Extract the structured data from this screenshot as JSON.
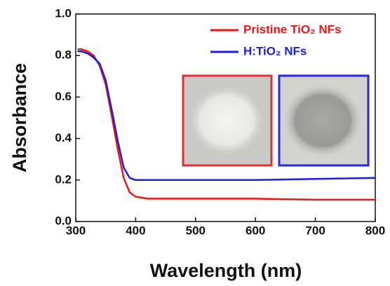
{
  "chart_data": {
    "type": "line",
    "x_label": "Wavelength (nm)",
    "y_label": "Absorbance",
    "x": [
      303,
      310,
      320,
      330,
      340,
      350,
      360,
      370,
      380,
      390,
      400,
      420,
      450,
      500,
      600,
      700,
      800
    ],
    "series": [
      {
        "name": "Pristine TiO₂ NFs",
        "color": "#f01414",
        "values": [
          0.83,
          0.83,
          0.82,
          0.8,
          0.75,
          0.66,
          0.51,
          0.35,
          0.21,
          0.14,
          0.12,
          0.11,
          0.11,
          0.11,
          0.11,
          0.105,
          0.105
        ]
      },
      {
        "name": "H:TiO₂ NFs",
        "color": "#1c1cf0",
        "values": [
          0.82,
          0.82,
          0.81,
          0.79,
          0.76,
          0.68,
          0.54,
          0.39,
          0.26,
          0.21,
          0.2,
          0.2,
          0.2,
          0.2,
          0.2,
          0.205,
          0.21
        ]
      }
    ],
    "xlim": [
      300,
      800
    ],
    "xticks": [
      300,
      400,
      500,
      600,
      700,
      800
    ],
    "ylim": [
      0,
      1
    ],
    "yticks": [
      {
        "value": 0,
        "label": "0.0"
      },
      0.2,
      0.4,
      0.6,
      0.8,
      {
        "value": 1,
        "label": "1.0"
      }
    ],
    "legend": "upper right"
  }
}
